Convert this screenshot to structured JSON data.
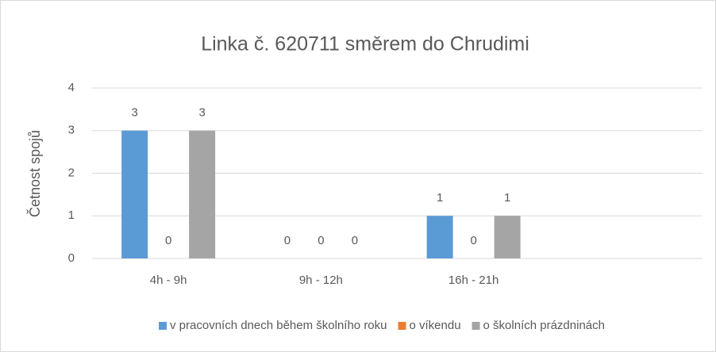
{
  "chart_data": {
    "type": "bar",
    "title": "Linka č. 620711 směrem do Chrudimi",
    "y_label": "Četnost spojů",
    "categories": [
      "4h - 9h",
      "9h - 12h",
      "16h - 21h",
      null
    ],
    "series": [
      {
        "name": "v pracovních dnech během školního roku",
        "color": "#5b9bd5",
        "values": [
          3,
          0,
          1,
          null
        ]
      },
      {
        "name": "o víkendu",
        "color": "#ed7d31",
        "values": [
          0,
          0,
          0,
          null
        ]
      },
      {
        "name": "o školních prázdninách",
        "color": "#a5a5a5",
        "values": [
          3,
          0,
          1,
          null
        ]
      }
    ],
    "ylim": [
      0,
      4
    ],
    "yticks": [
      0,
      1,
      2,
      3,
      4
    ],
    "grid": true,
    "legend": "bottom"
  }
}
